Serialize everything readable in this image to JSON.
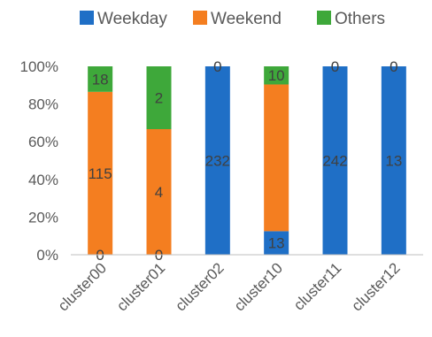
{
  "chart_data": {
    "type": "bar",
    "stacked": "percent",
    "title": "",
    "xlabel": "",
    "ylabel": "",
    "ylim": [
      0,
      100
    ],
    "yticks": [
      "0%",
      "20%",
      "40%",
      "60%",
      "80%",
      "100%"
    ],
    "grid": false,
    "legend_position": "top",
    "categories": [
      "cluster00",
      "cluster01",
      "cluster02",
      "cluster10",
      "cluster11",
      "cluster12"
    ],
    "series": [
      {
        "name": "Weekday",
        "color": "#1f6fc6",
        "values": [
          0,
          0,
          232,
          13,
          242,
          13
        ]
      },
      {
        "name": "Weekend",
        "color": "#f47e20",
        "values": [
          115,
          4,
          0,
          81,
          0,
          0
        ]
      },
      {
        "name": "Others",
        "color": "#3ea83a",
        "values": [
          18,
          2,
          0,
          10,
          0,
          0
        ]
      }
    ],
    "data_labels": [
      {
        "series": "Weekday",
        "category": "cluster00",
        "text": "0"
      },
      {
        "series": "Weekday",
        "category": "cluster01",
        "text": "0"
      },
      {
        "series": "Weekday",
        "category": "cluster02",
        "text": "232"
      },
      {
        "series": "Weekday",
        "category": "cluster10",
        "text": "13"
      },
      {
        "series": "Weekday",
        "category": "cluster11",
        "text": "242"
      },
      {
        "series": "Weekday",
        "category": "cluster12",
        "text": "13"
      },
      {
        "series": "Weekend",
        "category": "cluster00",
        "text": "115"
      },
      {
        "series": "Weekend",
        "category": "cluster01",
        "text": "4"
      },
      {
        "series": "Others",
        "category": "cluster00",
        "text": "18"
      },
      {
        "series": "Others",
        "category": "cluster01",
        "text": "2"
      },
      {
        "series": "Others",
        "category": "cluster02",
        "text": "0"
      },
      {
        "series": "Others",
        "category": "cluster10",
        "text": "10"
      },
      {
        "series": "Others",
        "category": "cluster11",
        "text": "0"
      },
      {
        "series": "Others",
        "category": "cluster12",
        "text": "0"
      }
    ]
  }
}
